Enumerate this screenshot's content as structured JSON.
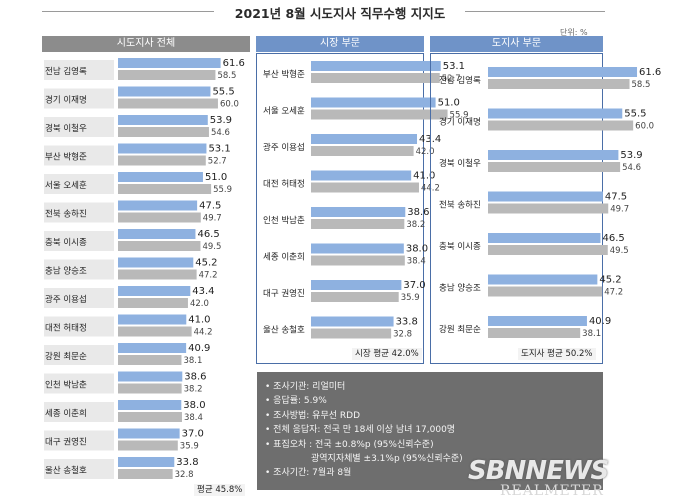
{
  "title": "2021년 8월 시도지사 직무수행 지지도",
  "unit": "단위: %",
  "chart_data": [
    {
      "type": "bar",
      "title": "시도지사 전체",
      "categories": [
        "전남 김영록",
        "경기 이재명",
        "경북 이철우",
        "부산 박형준",
        "서울 오세훈",
        "전북 송하진",
        "충북 이시종",
        "충남 양승조",
        "광주 이용섭",
        "대전 허태정",
        "강원 최문순",
        "인천 박남춘",
        "세종 이춘희",
        "대구 권영진",
        "울산 송철호"
      ],
      "series": [
        {
          "values": [
            61.6,
            55.5,
            53.9,
            53.1,
            51.0,
            47.5,
            46.5,
            45.2,
            43.4,
            41.0,
            40.9,
            38.6,
            38.0,
            37.0,
            33.8
          ],
          "color": "#8eb1e0"
        },
        {
          "values": [
            58.5,
            60.0,
            54.6,
            52.7,
            55.9,
            49.7,
            49.5,
            47.2,
            42.0,
            44.2,
            38.1,
            38.2,
            38.4,
            35.9,
            32.8
          ],
          "color": "#b9b9b9"
        }
      ],
      "xlim": [
        0,
        70
      ],
      "average_label": "평균 45.8%"
    },
    {
      "type": "bar",
      "title": "시장 부문",
      "categories": [
        "부산 박형준",
        "서울 오세훈",
        "광주 이용섭",
        "대전 허태정",
        "인천 박남춘",
        "세종 이춘희",
        "대구 권영진",
        "울산 송철호"
      ],
      "series": [
        {
          "values": [
            53.1,
            51.0,
            43.4,
            41.0,
            38.6,
            38.0,
            37.0,
            33.8
          ],
          "color": "#8eb1e0"
        },
        {
          "values": [
            52.7,
            55.9,
            42.0,
            44.2,
            38.2,
            38.4,
            35.9,
            32.8
          ],
          "color": "#b9b9b9"
        }
      ],
      "xlim": [
        0,
        70
      ],
      "average_label": "시장 평균 42.0%"
    },
    {
      "type": "bar",
      "title": "도지사 부문",
      "categories": [
        "전남 김영록",
        "경기 이재명",
        "경북 이철우",
        "전북 송하진",
        "충북 이시종",
        "충남 양승조",
        "강원 최문순"
      ],
      "series": [
        {
          "values": [
            61.6,
            55.5,
            53.9,
            47.5,
            46.5,
            45.2,
            40.9
          ],
          "color": "#8eb1e0"
        },
        {
          "values": [
            58.5,
            60.0,
            54.6,
            49.7,
            49.5,
            47.2,
            38.1
          ],
          "color": "#b9b9b9"
        }
      ],
      "xlim": [
        0,
        75
      ],
      "average_label": "도지사 평균 50.2%"
    }
  ],
  "notes": [
    {
      "text": "• 조사기관: 리얼미터",
      "indent": false
    },
    {
      "text": "• 응답률: 5.9%",
      "indent": false
    },
    {
      "text": "• 조사방법: 유무선 RDD",
      "indent": false
    },
    {
      "text": "• 전체 응답자: 전국 만 18세 이상 남녀 17,000명",
      "indent": false
    },
    {
      "text": "• 표집오차 : 전국 ±0.8%p (95%신뢰수준)",
      "indent": false
    },
    {
      "text": "광역지자체별 ±3.1%p (95%신뢰수준)",
      "indent": true
    },
    {
      "text": "• 조사기간: 7월과 8월",
      "indent": false
    }
  ],
  "watermark": {
    "line1": "SBNNEWS",
    "line2": "REALMETER"
  }
}
